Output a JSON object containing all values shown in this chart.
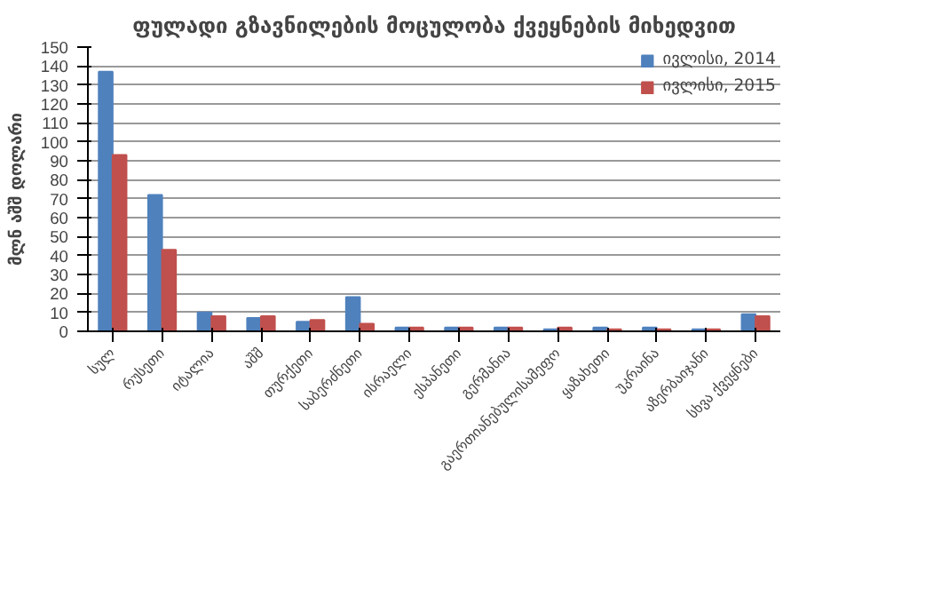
{
  "chart_data": {
    "type": "bar",
    "title": "ფულადი გზავნილების მოცულობა ქვეყნების მიხედვით",
    "ylabel": "მლნ აშშ დოლარი",
    "categories": [
      "სულ",
      "რუსეთი",
      "იტალია",
      "აშშ",
      "თურქეთი",
      "საბერძნეთი",
      "ისრაელი",
      "ესპანეთი",
      "გერმანია",
      "გაერთიანებულისამეფო",
      "ყაზახეთი",
      "უკრაინა",
      "აზერბაიჯანი",
      "სხვა ქვეყნები"
    ],
    "series": [
      {
        "name": "ივლისი, 2014",
        "color": "#4f81bd",
        "values": [
          137,
          72,
          10,
          7,
          5,
          18,
          2,
          2,
          2,
          1,
          2,
          2,
          1,
          9
        ]
      },
      {
        "name": "ივლისი, 2015",
        "color": "#c0504d",
        "values": [
          93,
          43,
          8,
          8,
          6,
          4,
          2,
          2,
          2,
          2,
          1,
          1,
          1,
          8
        ]
      }
    ],
    "ylim": [
      0,
      150
    ],
    "yticks": [
      0,
      10,
      20,
      30,
      40,
      50,
      60,
      70,
      80,
      90,
      100,
      110,
      120,
      130,
      140,
      150
    ],
    "grid": "y",
    "legend": "top right"
  }
}
